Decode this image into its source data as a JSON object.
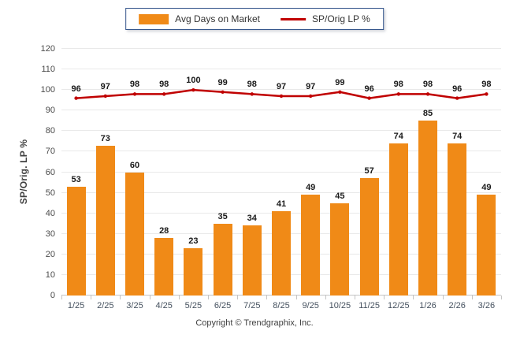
{
  "legend": {
    "bar_label": "Avg Days on Market",
    "line_label": "SP/Orig LP %"
  },
  "y_axis_title": "SP/Orig. LP %",
  "footer": {
    "copyright": "Copyright © Trendgraphix, Inc."
  },
  "colors": {
    "bar": "#F08A17",
    "line": "#C00000",
    "legend_border": "#34558B",
    "grid": "#E9E9E9",
    "axis": "#C4C4C4",
    "tick_text": "#4A4A4A",
    "data_label_text": "#1A1A1A"
  },
  "chart_data": {
    "type": "bar",
    "subtype": "bar-with-line-overlay",
    "categories": [
      "1/25",
      "2/25",
      "3/25",
      "4/25",
      "5/25",
      "6/25",
      "7/25",
      "8/25",
      "9/25",
      "10/25",
      "11/25",
      "12/25",
      "1/26",
      "2/26",
      "3/26"
    ],
    "series": [
      {
        "name": "Avg Days on Market",
        "type": "bar",
        "color": "#F08A17",
        "values": [
          53,
          73,
          60,
          28,
          23,
          35,
          34,
          41,
          49,
          45,
          57,
          74,
          85,
          74,
          49
        ]
      },
      {
        "name": "SP/Orig LP %",
        "type": "line",
        "color": "#C00000",
        "values": [
          96,
          97,
          98,
          98,
          100,
          99,
          98,
          97,
          97,
          99,
          96,
          98,
          98,
          96,
          98
        ]
      }
    ],
    "title": "",
    "xlabel": "",
    "ylabel": "SP/Orig. LP %",
    "ylim": [
      0,
      120
    ],
    "ytick_step": 10,
    "grid": true,
    "legend_position": "top",
    "data_labels": true
  }
}
